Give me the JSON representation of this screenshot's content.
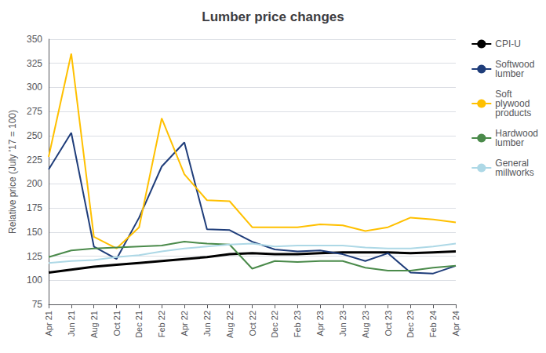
{
  "chart_data": {
    "type": "line",
    "title": "Lumber price changes",
    "ylabel": "Relative price (July '17 = 100)",
    "categories": [
      "Apr 21",
      "Jun 21",
      "Aug 21",
      "Oct 21",
      "Dec 21",
      "Feb 22",
      "Apr 22",
      "Jun 22",
      "Aug 22",
      "Oct 22",
      "Dec 22",
      "Feb 23",
      "Apr 23",
      "Jun 23",
      "Aug 23",
      "Oct 23",
      "Dec 23",
      "Feb 24",
      "Apr 24"
    ],
    "series": [
      {
        "name": "CPI-U",
        "color": "#000000",
        "values": [
          108,
          111,
          114,
          116,
          118,
          120,
          122,
          124,
          127,
          128,
          127,
          127,
          128,
          129,
          129,
          129,
          128,
          129,
          130
        ]
      },
      {
        "name": "Softwood\nlumber",
        "color": "#1f3d7a",
        "values": [
          215,
          253,
          135,
          122,
          165,
          218,
          243,
          153,
          152,
          140,
          132,
          130,
          131,
          127,
          120,
          128,
          108,
          107,
          115
        ]
      },
      {
        "name": "Soft\nplywood\nproducts",
        "color": "#ffc000",
        "values": [
          228,
          335,
          145,
          133,
          155,
          268,
          210,
          183,
          182,
          155,
          155,
          155,
          158,
          157,
          151,
          155,
          165,
          163,
          160
        ]
      },
      {
        "name": "Hardwood\nlumber",
        "color": "#4a8a4a",
        "values": [
          124,
          131,
          133,
          134,
          135,
          136,
          140,
          138,
          137,
          112,
          120,
          119,
          120,
          120,
          113,
          110,
          110,
          113,
          115
        ]
      },
      {
        "name": "General\nmillworks",
        "color": "#add8e6",
        "values": [
          118,
          120,
          121,
          124,
          126,
          130,
          133,
          135,
          137,
          138,
          135,
          136,
          136,
          136,
          134,
          133,
          133,
          135,
          138
        ]
      }
    ],
    "ylim": [
      75,
      350
    ],
    "yticks": [
      75,
      100,
      125,
      150,
      175,
      200,
      225,
      250,
      275,
      300,
      325,
      350
    ],
    "grid": true,
    "legend": "upper right"
  }
}
